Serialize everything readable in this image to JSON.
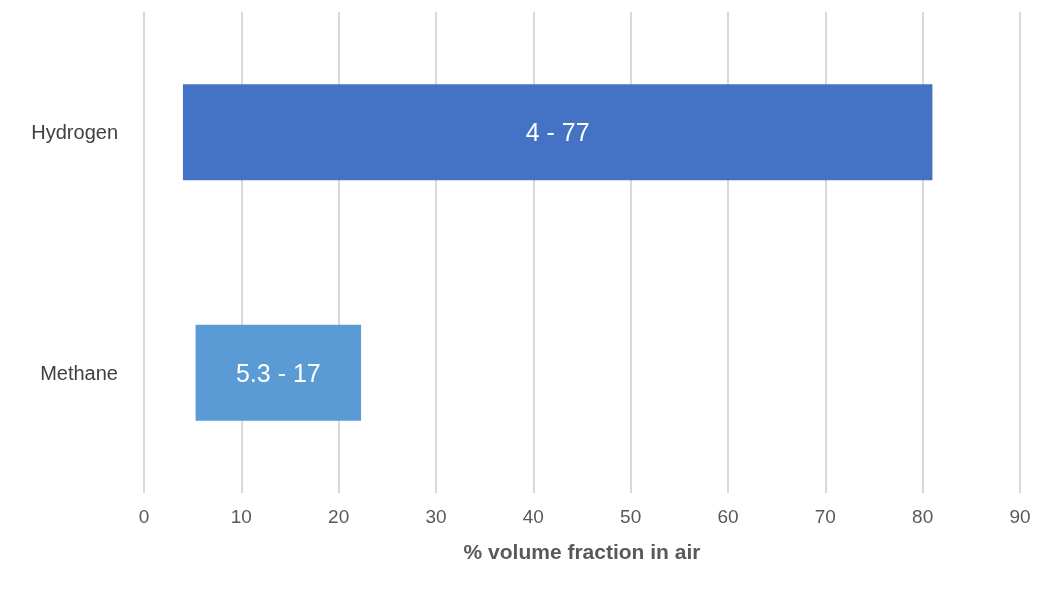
{
  "chart_data": {
    "type": "bar",
    "orientation": "horizontal",
    "xlabel": "% volume fraction in air",
    "categories": [
      "Hydrogen",
      "Methane"
    ],
    "base": [
      4,
      5.3
    ],
    "values": [
      77,
      17
    ],
    "colors": [
      "#4472c4",
      "#5b9bd5"
    ],
    "annotations": [
      "4 - 77",
      "5.3 - 17"
    ],
    "xlim": [
      0,
      90
    ],
    "xticks": [
      0,
      10,
      20,
      30,
      40,
      50,
      60,
      70,
      80,
      90
    ],
    "grid": "x"
  }
}
